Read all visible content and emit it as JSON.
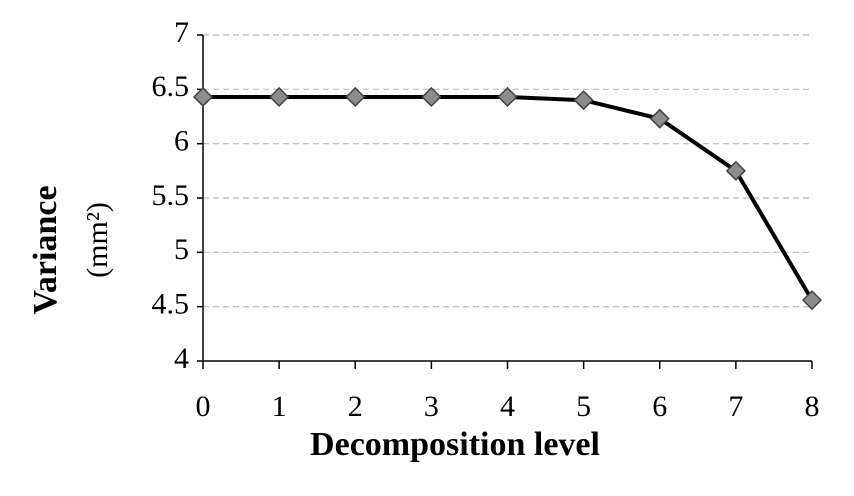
{
  "chart_data": {
    "type": "line",
    "x_label": "Decomposition level",
    "y_label": "Variance",
    "y_label_unit": "(mm²)",
    "x": [
      0,
      1,
      2,
      3,
      4,
      5,
      6,
      7,
      8
    ],
    "series": [
      {
        "color": "#000000",
        "marker_color": "#8c8c8c",
        "values": [
          6.43,
          6.43,
          6.43,
          6.43,
          6.43,
          6.4,
          6.23,
          5.75,
          4.56
        ]
      }
    ],
    "xlim": [
      0,
      8
    ],
    "xticks": [
      0,
      1,
      2,
      3,
      4,
      5,
      6,
      7,
      8
    ],
    "ylim": [
      4,
      7
    ],
    "yticks": [
      4,
      4.5,
      5,
      5.5,
      6,
      6.5,
      7
    ],
    "grid": true
  }
}
